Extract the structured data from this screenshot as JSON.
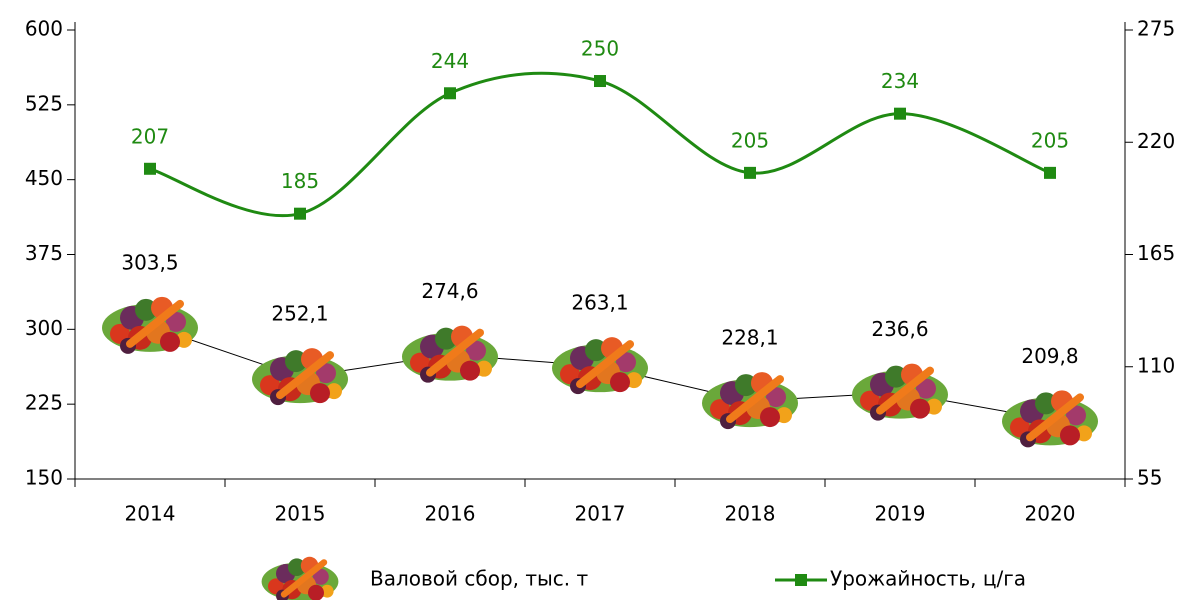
{
  "chart_data": {
    "type": "combo",
    "categories": [
      "2014",
      "2015",
      "2016",
      "2017",
      "2018",
      "2019",
      "2020"
    ],
    "series": [
      {
        "name": "Валовой сбор, тыс. т",
        "type": "picture-line",
        "color": "#000000",
        "values": [
          303.5,
          252.1,
          274.6,
          263.1,
          228.1,
          236.6,
          209.8
        ],
        "value_labels": [
          "303,5",
          "252,1",
          "274,6",
          "263,1",
          "228,1",
          "236,6",
          "209,8"
        ]
      },
      {
        "name": "Урожайность, ц/га",
        "type": "line",
        "color": "#1f8a12",
        "axis": "y2",
        "values": [
          207,
          185,
          244,
          250,
          205,
          234,
          205
        ]
      }
    ],
    "ylim": [
      150,
      600
    ],
    "yticks": [
      150,
      225,
      300,
      375,
      450,
      525,
      600
    ],
    "y2lim": [
      55,
      275
    ],
    "y2ticks": [
      55,
      110,
      165,
      220,
      275
    ],
    "legend": "bottom"
  }
}
